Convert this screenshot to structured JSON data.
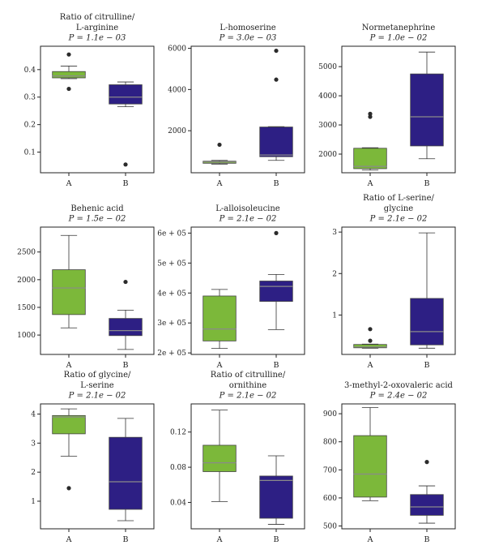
{
  "colors": {
    "A": "#7cb83a",
    "B": "#2d1f84"
  },
  "chart_data": [
    {
      "type": "box",
      "title_lines": [
        "Ratio of citrulline/",
        "L-arginine"
      ],
      "pvalue": "P = 1.1e − 03",
      "categories": [
        "A",
        "B"
      ],
      "ylim": [
        0.025,
        0.485
      ],
      "yticks": [
        0.1,
        0.2,
        0.3,
        0.4
      ],
      "ytick_labels": [
        "0.1",
        "0.2",
        "0.3",
        "0.4"
      ],
      "boxes": [
        {
          "name": "A",
          "whislo": 0.367,
          "q1": 0.37,
          "med": 0.377,
          "q3": 0.393,
          "whishi": 0.413,
          "fliers": [
            0.455,
            0.33
          ]
        },
        {
          "name": "B",
          "whislo": 0.265,
          "q1": 0.275,
          "med": 0.3,
          "q3": 0.345,
          "whishi": 0.355,
          "fliers": [
            0.055
          ]
        }
      ]
    },
    {
      "type": "box",
      "title_lines": [
        "L-homoserine"
      ],
      "pvalue": "P = 3.0e − 03",
      "categories": [
        "A",
        "B"
      ],
      "ylim": [
        -40,
        6100
      ],
      "yticks": [
        2000,
        4000,
        6000
      ],
      "ytick_labels": [
        "2000",
        "4000",
        "6000"
      ],
      "boxes": [
        {
          "name": "A",
          "whislo": 380,
          "q1": 420,
          "med": 480,
          "q3": 520,
          "whishi": 560,
          "fliers": [
            1320
          ]
        },
        {
          "name": "B",
          "whislo": 560,
          "q1": 740,
          "med": 820,
          "q3": 2180,
          "whishi": 2200,
          "fliers": [
            4480,
            5880
          ]
        }
      ]
    },
    {
      "type": "box",
      "title_lines": [
        "Normetanephrine"
      ],
      "pvalue": "P = 1.0e − 02",
      "categories": [
        "A",
        "B"
      ],
      "ylim": [
        1360,
        5700
      ],
      "yticks": [
        2000,
        3000,
        4000,
        5000
      ],
      "ytick_labels": [
        "2000",
        "3000",
        "4000",
        "5000"
      ],
      "boxes": [
        {
          "name": "A",
          "whislo": 1450,
          "q1": 1500,
          "med": 1580,
          "q3": 2200,
          "whishi": 2220,
          "fliers": [
            3280,
            3380
          ]
        },
        {
          "name": "B",
          "whislo": 1840,
          "q1": 2280,
          "med": 3280,
          "q3": 4750,
          "whishi": 5500,
          "fliers": []
        }
      ]
    },
    {
      "type": "box",
      "title_lines": [
        "Behenic acid"
      ],
      "pvalue": "P = 1.5e − 02",
      "categories": [
        "A",
        "B"
      ],
      "ylim": [
        650,
        2950
      ],
      "yticks": [
        1000,
        1500,
        2000,
        2500
      ],
      "ytick_labels": [
        "1000",
        "1500",
        "2000",
        "2500"
      ],
      "boxes": [
        {
          "name": "A",
          "whislo": 1130,
          "q1": 1370,
          "med": 1850,
          "q3": 2180,
          "whishi": 2800,
          "fliers": []
        },
        {
          "name": "B",
          "whislo": 740,
          "q1": 990,
          "med": 1080,
          "q3": 1300,
          "whishi": 1450,
          "fliers": [
            1960
          ]
        }
      ]
    },
    {
      "type": "box",
      "title_lines": [
        "L-alloisoleucine"
      ],
      "pvalue": "P = 2.1e − 02",
      "categories": [
        "A",
        "B"
      ],
      "ylim": [
        195000,
        620000
      ],
      "yticks": [
        200000,
        300000,
        400000,
        500000,
        600000
      ],
      "ytick_labels": [
        "2e + 05",
        "3e + 05",
        "4e + 05",
        "5e + 05",
        "6e + 05"
      ],
      "boxes": [
        {
          "name": "A",
          "whislo": 215000,
          "q1": 240000,
          "med": 280000,
          "q3": 390000,
          "whishi": 412000,
          "fliers": []
        },
        {
          "name": "B",
          "whislo": 278000,
          "q1": 372000,
          "med": 422000,
          "q3": 440000,
          "whishi": 462000,
          "fliers": [
            600000
          ]
        }
      ]
    },
    {
      "type": "box",
      "title_lines": [
        "Ratio of L-serine/",
        "glycine"
      ],
      "pvalue": "P = 2.1e − 02",
      "categories": [
        "A",
        "B"
      ],
      "ylim": [
        0.05,
        3.12
      ],
      "yticks": [
        1,
        2,
        3
      ],
      "ytick_labels": [
        "1",
        "2",
        "3"
      ],
      "boxes": [
        {
          "name": "A",
          "whislo": 0.2,
          "q1": 0.21,
          "med": 0.23,
          "q3": 0.29,
          "whishi": 0.3,
          "fliers": [
            0.38,
            0.66
          ]
        },
        {
          "name": "B",
          "whislo": 0.2,
          "q1": 0.28,
          "med": 0.6,
          "q3": 1.4,
          "whishi": 2.98,
          "fliers": []
        }
      ]
    },
    {
      "type": "box",
      "title_lines": [
        "Ratio of glycine/",
        "L-serine"
      ],
      "pvalue": "P = 2.1e − 02",
      "categories": [
        "A",
        "B"
      ],
      "ylim": [
        0.05,
        4.35
      ],
      "yticks": [
        1,
        2,
        3,
        4
      ],
      "ytick_labels": [
        "1",
        "2",
        "3",
        "4"
      ],
      "boxes": [
        {
          "name": "A",
          "whislo": 2.55,
          "q1": 3.32,
          "med": 3.9,
          "q3": 3.95,
          "whishi": 4.18,
          "fliers": [
            1.45
          ]
        },
        {
          "name": "B",
          "whislo": 0.33,
          "q1": 0.72,
          "med": 1.67,
          "q3": 3.2,
          "whishi": 3.85,
          "fliers": []
        }
      ]
    },
    {
      "type": "box",
      "title_lines": [
        "Ratio of citrulline/",
        "ornithine"
      ],
      "pvalue": "P = 2.1e − 02",
      "categories": [
        "A",
        "B"
      ],
      "ylim": [
        0.01,
        0.152
      ],
      "yticks": [
        0.04,
        0.08,
        0.12
      ],
      "ytick_labels": [
        "0.04",
        "0.08",
        "0.12"
      ],
      "boxes": [
        {
          "name": "A",
          "whislo": 0.041,
          "q1": 0.075,
          "med": 0.085,
          "q3": 0.105,
          "whishi": 0.145,
          "fliers": []
        },
        {
          "name": "B",
          "whislo": 0.015,
          "q1": 0.022,
          "med": 0.065,
          "q3": 0.07,
          "whishi": 0.093,
          "fliers": []
        }
      ]
    },
    {
      "type": "box",
      "title_lines": [
        "3-methyl-2-oxovaleric acid"
      ],
      "pvalue": "P = 2.4e − 02",
      "categories": [
        "A",
        "B"
      ],
      "ylim": [
        490,
        935
      ],
      "yticks": [
        500,
        600,
        700,
        800,
        900
      ],
      "ytick_labels": [
        "500",
        "600",
        "700",
        "800",
        "900"
      ],
      "boxes": [
        {
          "name": "A",
          "whislo": 590,
          "q1": 603,
          "med": 685,
          "q3": 822,
          "whishi": 922,
          "fliers": []
        },
        {
          "name": "B",
          "whislo": 510,
          "q1": 538,
          "med": 568,
          "q3": 612,
          "whishi": 643,
          "fliers": [
            728
          ]
        }
      ]
    }
  ]
}
